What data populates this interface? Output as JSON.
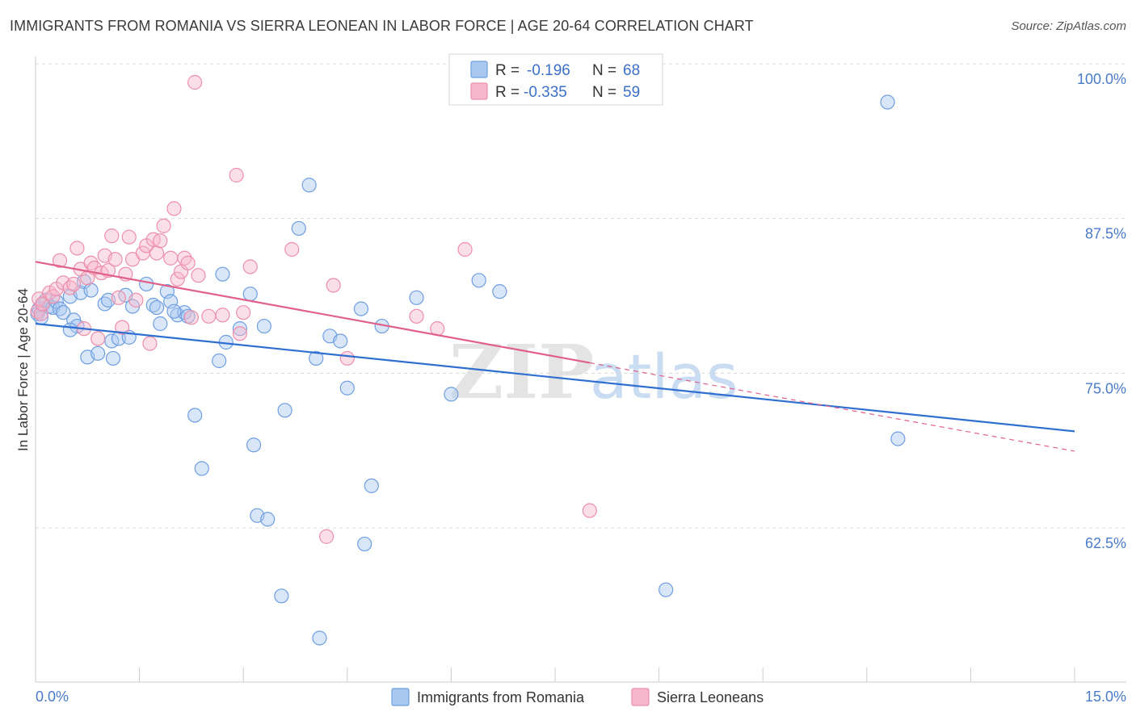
{
  "title": "IMMIGRANTS FROM ROMANIA VS SIERRA LEONEAN IN LABOR FORCE | AGE 20-64 CORRELATION CHART",
  "source": "Source: ZipAtlas.com",
  "watermark": {
    "zip": "ZIP",
    "atlas": "atlas"
  },
  "colors": {
    "blue_fill": "#a9c8f0",
    "blue_stroke": "#6f9fe0",
    "blue_line": "#2e6fd0",
    "pink_fill": "#f6b8cc",
    "pink_stroke": "#ec8fab",
    "pink_line": "#e0608a",
    "grid": "#d8d8d8",
    "tick_text": "#4a7bc8"
  },
  "legend": {
    "rows": [
      {
        "r_label": "R =",
        "r_value": "-0.196",
        "n_label": "N =",
        "n_value": "68"
      },
      {
        "r_label": "R =",
        "r_value": "-0.335",
        "n_label": "N =",
        "n_value": "59"
      }
    ]
  },
  "chart_data": {
    "type": "scatter",
    "title": "IMMIGRANTS FROM ROMANIA VS SIERRA LEONEAN IN LABOR FORCE | AGE 20-64 CORRELATION CHART",
    "xlabel": "",
    "ylabel": "In Labor Force | Age 20-64",
    "xlim": [
      0,
      15
    ],
    "ylim": [
      50,
      101.5
    ],
    "x_tick_labels": [
      "0.0%",
      "15.0%"
    ],
    "y_ticks": [
      62.5,
      75.0,
      87.5,
      100.0
    ],
    "y_tick_labels": [
      "62.5%",
      "75.0%",
      "87.5%",
      "100.0%"
    ],
    "grid": true,
    "legend_position": "top-center",
    "series": [
      {
        "name": "Immigrants from Romania",
        "color": "#6f9fe0",
        "trend": {
          "x": [
            0,
            15
          ],
          "y": [
            79.0,
            70.3
          ],
          "dashed_from": null
        },
        "points": [
          [
            0.03,
            79.8
          ],
          [
            0.05,
            80.2
          ],
          [
            0.08,
            79.5
          ],
          [
            0.1,
            80.5
          ],
          [
            0.15,
            80.9
          ],
          [
            0.2,
            80.4
          ],
          [
            0.25,
            80.3
          ],
          [
            0.3,
            80.8
          ],
          [
            0.35,
            80.2
          ],
          [
            0.4,
            79.9
          ],
          [
            0.5,
            81.2
          ],
          [
            0.55,
            79.3
          ],
          [
            0.6,
            78.8
          ],
          [
            0.65,
            81.5
          ],
          [
            0.7,
            82.4
          ],
          [
            0.75,
            76.3
          ],
          [
            0.8,
            81.7
          ],
          [
            0.9,
            76.6
          ],
          [
            1.0,
            80.6
          ],
          [
            1.05,
            80.9
          ],
          [
            1.1,
            77.6
          ],
          [
            1.12,
            76.2
          ],
          [
            1.2,
            77.8
          ],
          [
            1.3,
            81.3
          ],
          [
            1.35,
            77.9
          ],
          [
            1.6,
            82.2
          ],
          [
            1.7,
            80.5
          ],
          [
            1.75,
            80.3
          ],
          [
            1.9,
            81.6
          ],
          [
            1.95,
            80.8
          ],
          [
            2.05,
            79.7
          ],
          [
            2.15,
            79.9
          ],
          [
            2.2,
            79.6
          ],
          [
            2.3,
            71.6
          ],
          [
            2.4,
            67.3
          ],
          [
            2.65,
            76.0
          ],
          [
            2.7,
            83.0
          ],
          [
            2.75,
            77.5
          ],
          [
            2.95,
            78.6
          ],
          [
            3.1,
            81.4
          ],
          [
            3.3,
            78.8
          ],
          [
            3.15,
            69.2
          ],
          [
            3.2,
            63.5
          ],
          [
            3.35,
            63.2
          ],
          [
            3.55,
            57.0
          ],
          [
            3.6,
            72.0
          ],
          [
            3.8,
            86.7
          ],
          [
            3.95,
            90.2
          ],
          [
            4.05,
            76.2
          ],
          [
            4.1,
            53.6
          ],
          [
            4.25,
            78.0
          ],
          [
            4.4,
            77.6
          ],
          [
            4.5,
            73.8
          ],
          [
            4.7,
            80.2
          ],
          [
            4.75,
            61.2
          ],
          [
            4.85,
            65.9
          ],
          [
            5.0,
            78.8
          ],
          [
            5.5,
            81.1
          ],
          [
            6.0,
            73.3
          ],
          [
            6.4,
            82.5
          ],
          [
            6.7,
            81.6
          ],
          [
            9.1,
            57.5
          ],
          [
            12.3,
            96.9
          ],
          [
            12.45,
            69.7
          ],
          [
            0.5,
            78.5
          ],
          [
            1.8,
            79.0
          ],
          [
            2.0,
            80.0
          ],
          [
            1.4,
            80.4
          ]
        ]
      },
      {
        "name": "Sierra Leoneans",
        "color": "#ec8fab",
        "trend": {
          "x": [
            0,
            15
          ],
          "y": [
            84.0,
            68.7
          ],
          "dashed_from": 8.0
        },
        "points": [
          [
            0.03,
            80.0
          ],
          [
            0.05,
            81.0
          ],
          [
            0.08,
            79.8
          ],
          [
            0.1,
            80.6
          ],
          [
            0.2,
            81.5
          ],
          [
            0.25,
            81.2
          ],
          [
            0.3,
            81.8
          ],
          [
            0.35,
            84.1
          ],
          [
            0.4,
            82.3
          ],
          [
            0.5,
            81.9
          ],
          [
            0.55,
            82.2
          ],
          [
            0.6,
            85.1
          ],
          [
            0.65,
            83.4
          ],
          [
            0.7,
            78.6
          ],
          [
            0.75,
            82.7
          ],
          [
            0.8,
            83.9
          ],
          [
            0.85,
            83.5
          ],
          [
            0.9,
            77.8
          ],
          [
            0.95,
            83.1
          ],
          [
            1.0,
            84.5
          ],
          [
            1.05,
            83.3
          ],
          [
            1.1,
            86.1
          ],
          [
            1.15,
            84.2
          ],
          [
            1.2,
            81.1
          ],
          [
            1.25,
            78.7
          ],
          [
            1.3,
            83.0
          ],
          [
            1.35,
            86.0
          ],
          [
            1.4,
            84.2
          ],
          [
            1.45,
            80.9
          ],
          [
            1.55,
            84.7
          ],
          [
            1.6,
            85.3
          ],
          [
            1.65,
            77.4
          ],
          [
            1.7,
            85.8
          ],
          [
            1.75,
            84.7
          ],
          [
            1.8,
            85.7
          ],
          [
            1.85,
            86.9
          ],
          [
            1.95,
            84.3
          ],
          [
            2.0,
            88.3
          ],
          [
            2.05,
            82.6
          ],
          [
            2.1,
            83.2
          ],
          [
            2.15,
            84.3
          ],
          [
            2.2,
            83.9
          ],
          [
            2.25,
            79.5
          ],
          [
            2.35,
            82.9
          ],
          [
            2.3,
            98.5
          ],
          [
            2.5,
            79.6
          ],
          [
            2.7,
            79.7
          ],
          [
            2.9,
            91.0
          ],
          [
            2.95,
            78.2
          ],
          [
            3.0,
            79.9
          ],
          [
            3.1,
            83.6
          ],
          [
            3.7,
            85.0
          ],
          [
            4.3,
            82.1
          ],
          [
            4.5,
            76.2
          ],
          [
            4.2,
            61.8
          ],
          [
            5.5,
            79.6
          ],
          [
            5.8,
            78.6
          ],
          [
            6.2,
            85.0
          ],
          [
            8.0,
            63.9
          ]
        ]
      }
    ]
  },
  "bottom_legend": [
    {
      "label": "Immigrants from Romania"
    },
    {
      "label": "Sierra Leoneans"
    }
  ]
}
